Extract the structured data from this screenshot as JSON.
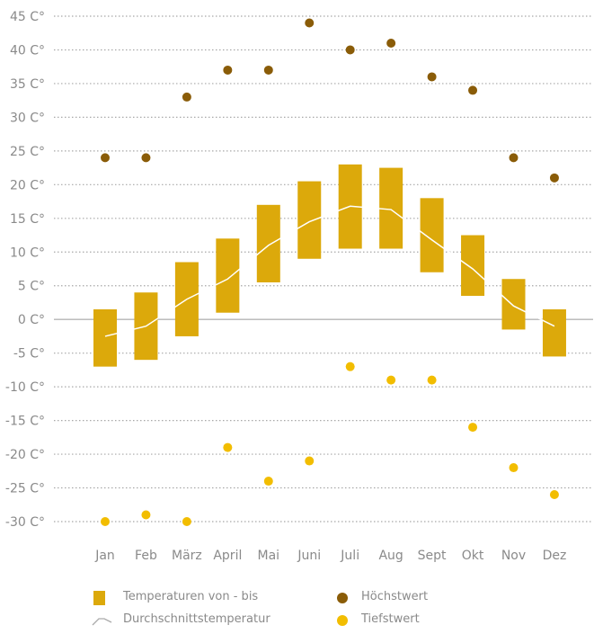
{
  "chart_data": {
    "type": "bar",
    "categories": [
      "Jan",
      "Feb",
      "März",
      "April",
      "Mai",
      "Juni",
      "Juli",
      "Aug",
      "Sept",
      "Okt",
      "Nov",
      "Dez"
    ],
    "ylim": [
      -30,
      45
    ],
    "yticks": [
      45,
      40,
      35,
      30,
      25,
      20,
      15,
      10,
      5,
      0,
      -5,
      -10,
      -15,
      -20,
      -25,
      -30
    ],
    "ytick_labels": [
      "45 C°",
      "40 C°",
      "35 C°",
      "30 C°",
      "25 C°",
      "20 C°",
      "15 C°",
      "10 C°",
      "5 C°",
      "0 C°",
      "-5 C°",
      "-10 C°",
      "-15 C°",
      "-20 C°",
      "-25 C°",
      "-30 C°"
    ],
    "grid": true,
    "legend_position": "bottom",
    "series": [
      {
        "name": "Temperaturen von - bis",
        "kind": "range",
        "color": "#dca90b",
        "low": [
          -7,
          -6,
          -2.5,
          1,
          5.5,
          9,
          10.5,
          10.5,
          7,
          3.5,
          -1.5,
          -5.5
        ],
        "high": [
          1.5,
          4,
          8.5,
          12,
          17,
          20.5,
          23,
          22.5,
          18,
          12.5,
          6,
          1.5
        ]
      },
      {
        "name": "Durchschnittstemperatur",
        "kind": "line",
        "color": "#ffffff",
        "values": [
          -2.5,
          -1,
          3,
          6,
          11,
          14.5,
          16.8,
          16.3,
          11.8,
          7.5,
          2,
          -1
        ]
      },
      {
        "name": "Höchstwert",
        "kind": "scatter",
        "color": "#8a5c08",
        "values": [
          24,
          24,
          33,
          37,
          37,
          44,
          40,
          41,
          36,
          34,
          24,
          21
        ]
      },
      {
        "name": "Tiefstwert",
        "kind": "scatter",
        "color": "#f2bd00",
        "values": [
          -30,
          -29,
          -30,
          -19,
          -24,
          -21,
          -7,
          -9,
          -9,
          -16,
          -22,
          -26
        ]
      }
    ]
  }
}
